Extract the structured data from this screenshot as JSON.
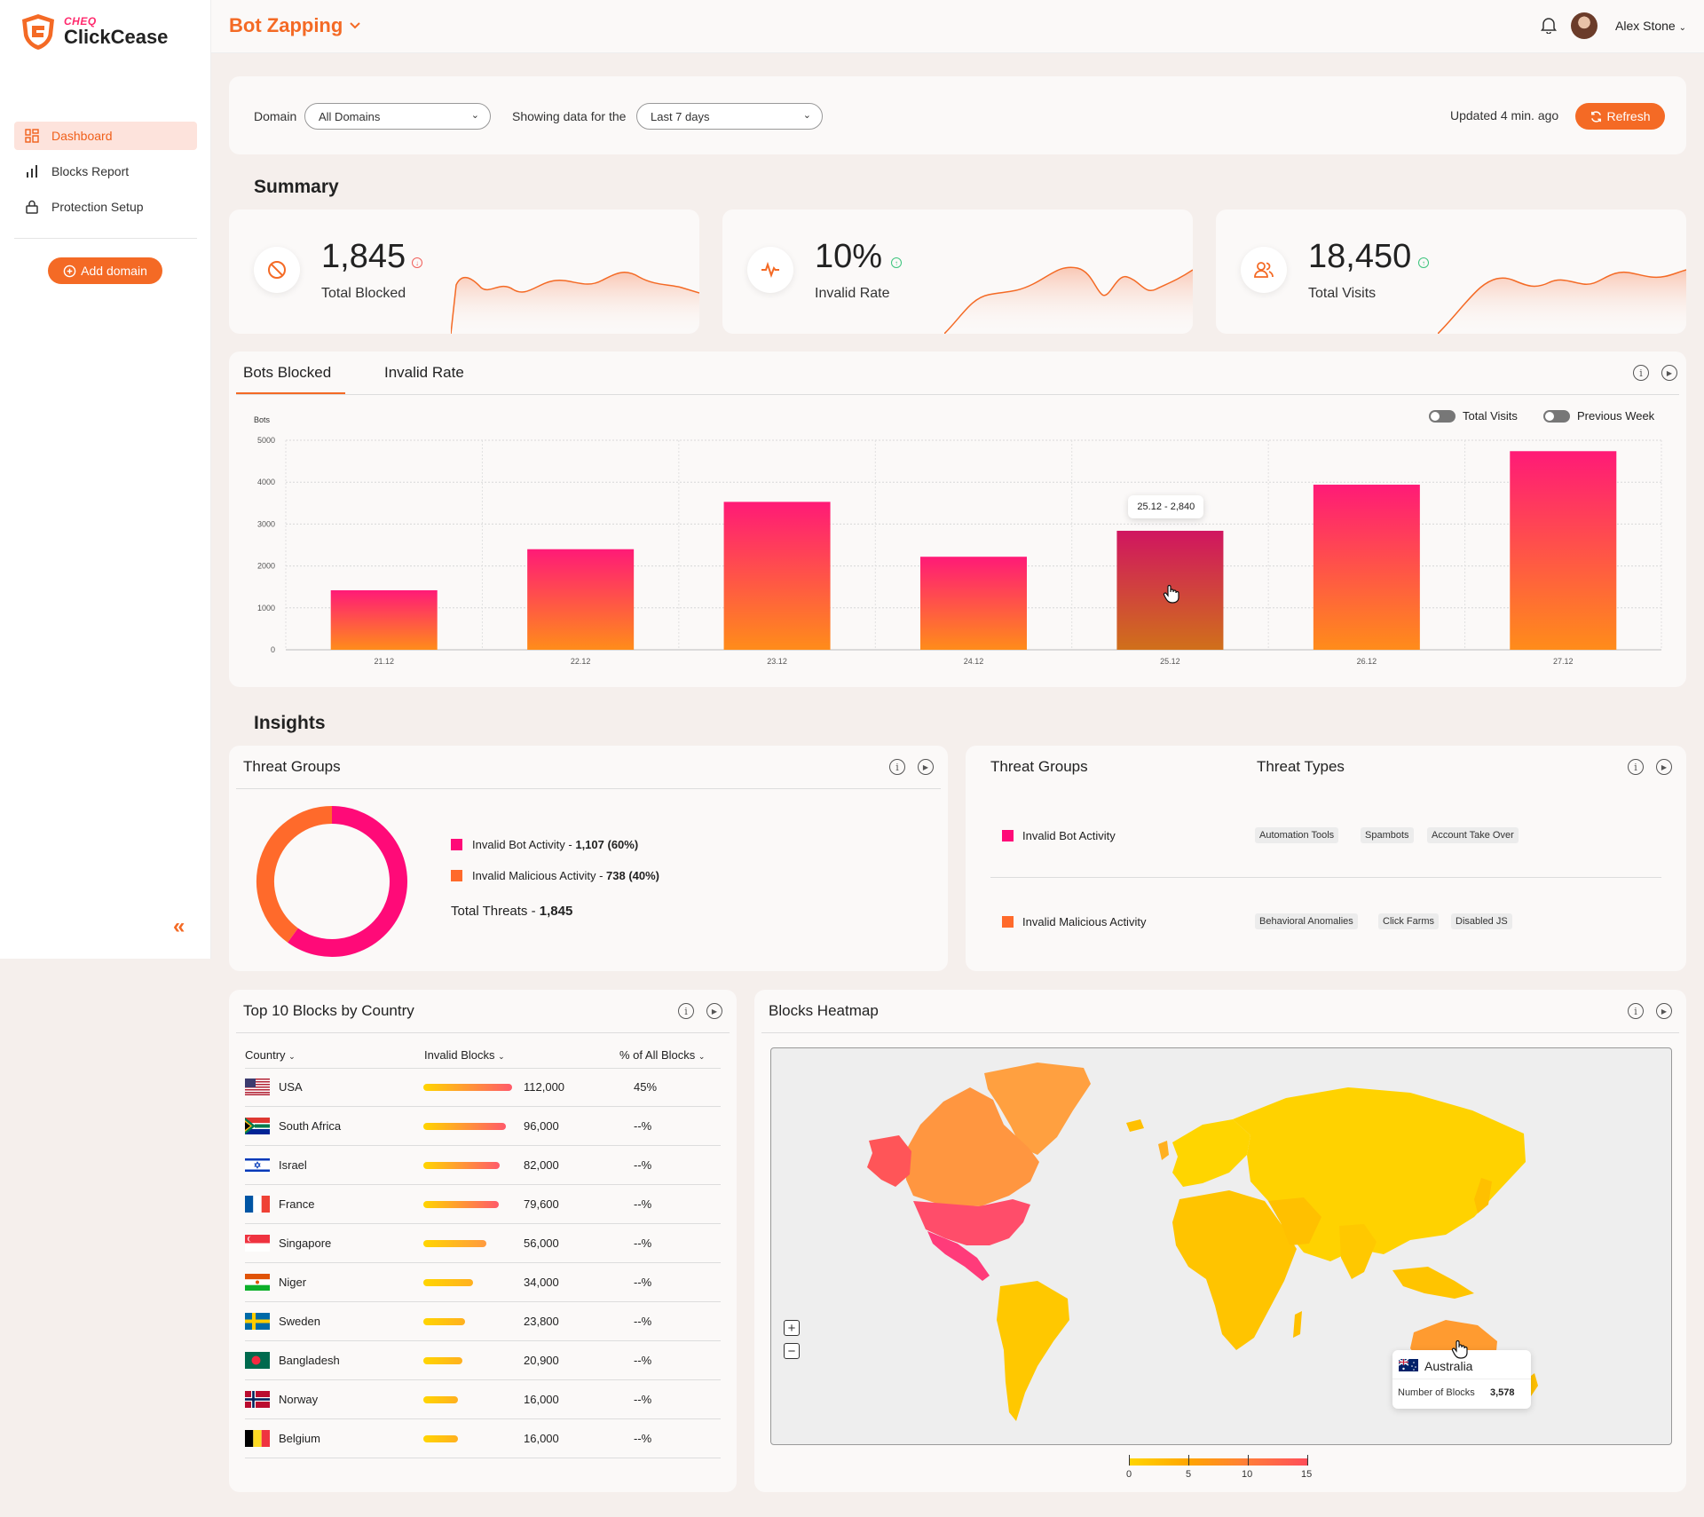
{
  "app": {
    "brand_small": "CHEQ",
    "brand": "ClickCease"
  },
  "sidebar": {
    "items": [
      {
        "label": "Dashboard",
        "icon": "grid-icon",
        "active": true
      },
      {
        "label": "Blocks Report",
        "icon": "bar-chart-icon"
      },
      {
        "label": "Protection Setup",
        "icon": "lock-icon"
      }
    ],
    "add_domain": "Add domain",
    "collapse": "«"
  },
  "header": {
    "title": "Bot Zapping",
    "user": "Alex Stone"
  },
  "filters": {
    "domain_label": "Domain",
    "domain_value": "All Domains",
    "range_label": "Showing data for the",
    "range_value": "Last 7 days",
    "updated": "Updated 4 min. ago",
    "refresh": "Refresh"
  },
  "summary": {
    "title": "Summary",
    "cards": [
      {
        "value": "1,845",
        "label": "Total Blocked",
        "trend": "down",
        "trend_color": "#f0605b"
      },
      {
        "value": "10%",
        "label": "Invalid Rate",
        "trend": "up",
        "trend_color": "#3cc47c"
      },
      {
        "value": "18,450",
        "label": "Total Visits",
        "trend": "up",
        "trend_color": "#3cc47c"
      }
    ]
  },
  "bots_chart": {
    "tabs": [
      "Bots Blocked",
      "Invalid Rate"
    ],
    "toggles": [
      "Total Visits",
      "Previous Week"
    ],
    "tooltip": "25.12 - 2,840"
  },
  "chart_data": {
    "type": "bar",
    "ylabel": "Bots",
    "categories": [
      "21.12",
      "22.12",
      "23.12",
      "24.12",
      "25.12",
      "26.12",
      "27.12"
    ],
    "values": [
      1420,
      2400,
      3530,
      2220,
      2840,
      3940,
      4740
    ],
    "ylim": [
      0,
      5000
    ],
    "yticks": [
      0,
      1000,
      2000,
      3000,
      4000,
      5000
    ],
    "grid": true,
    "highlight_index": 4,
    "colors": {
      "top": "#ff1a77",
      "bottom": "#ff8c1a"
    }
  },
  "insights": {
    "title": "Insights",
    "threat_groups": {
      "title": "Threat Groups",
      "items": [
        {
          "name": "Invalid Bot Activity",
          "value": "1,107 (60%)",
          "color": "#ff0a78",
          "share": 0.6
        },
        {
          "name": "Invalid Malicious Activity",
          "value": "738 (40%)",
          "color": "#ff6a2b",
          "share": 0.4
        }
      ],
      "total_label": "Total Threats - ",
      "total_value": "1,845"
    },
    "threat_types": {
      "group_title": "Threat Groups",
      "types_title": "Threat Types",
      "rows": [
        {
          "group": "Invalid Bot Activity",
          "color": "#ff0a78",
          "types": [
            "Automation Tools",
            "Spambots",
            "Account Take Over"
          ]
        },
        {
          "group": "Invalid Malicious Activity",
          "color": "#ff6a2b",
          "types": [
            "Behavioral Anomalies",
            "Click Farms",
            "Disabled JS"
          ]
        }
      ]
    }
  },
  "top_countries": {
    "title": "Top 10 Blocks by Country",
    "columns": [
      "Country",
      "Invalid Blocks",
      "% of All Blocks"
    ],
    "rows": [
      {
        "country": "USA",
        "flag": "us-flag",
        "blocks": "112,000",
        "n": 112000,
        "pct": "45%"
      },
      {
        "country": "South Africa",
        "flag": "za-flag",
        "blocks": "96,000",
        "n": 96000,
        "pct": "--%"
      },
      {
        "country": "Israel",
        "flag": "il-flag",
        "blocks": "82,000",
        "n": 82000,
        "pct": "--%"
      },
      {
        "country": "France",
        "flag": "fr-flag",
        "blocks": "79,600",
        "n": 79600,
        "pct": "--%"
      },
      {
        "country": "Singapore",
        "flag": "sg-flag",
        "blocks": "56,000",
        "n": 56000,
        "pct": "--%"
      },
      {
        "country": "Niger",
        "flag": "ne-flag",
        "blocks": "34,000",
        "n": 34000,
        "pct": "--%"
      },
      {
        "country": "Sweden",
        "flag": "se-flag",
        "blocks": "23,800",
        "n": 23800,
        "pct": "--%"
      },
      {
        "country": "Bangladesh",
        "flag": "bd-flag",
        "blocks": "20,900",
        "n": 20900,
        "pct": "--%"
      },
      {
        "country": "Norway",
        "flag": "no-flag",
        "blocks": "16,000",
        "n": 16000,
        "pct": "--%"
      },
      {
        "country": "Belgium",
        "flag": "be-flag",
        "blocks": "16,000",
        "n": 16000,
        "pct": "--%"
      }
    ]
  },
  "heatmap": {
    "title": "Blocks Heatmap",
    "tooltip_country": "Australia",
    "tooltip_label": "Number of Blocks",
    "tooltip_value": "3,578",
    "scale_labels": [
      "0",
      "5",
      "10",
      "15"
    ]
  }
}
